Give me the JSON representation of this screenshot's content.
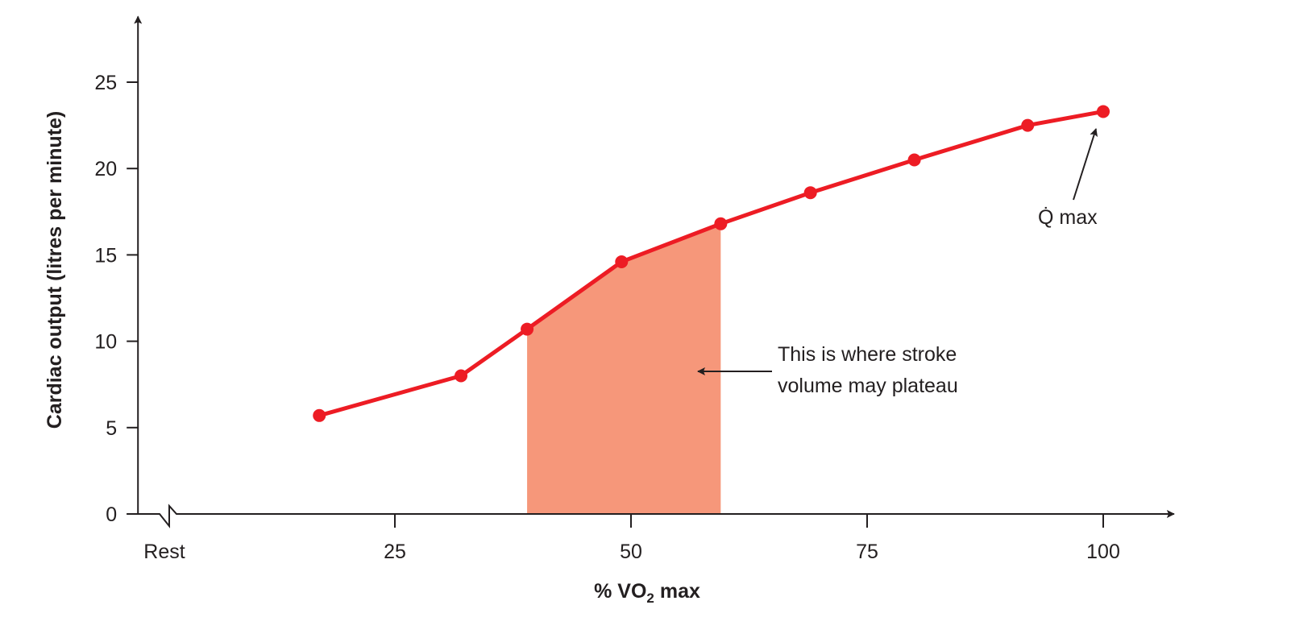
{
  "chart_data": {
    "type": "line",
    "title": "",
    "xlabel_prefix": "% VO",
    "xlabel_sub": "2",
    "xlabel_suffix": " max",
    "ylabel": "Cardiac output (litres per minute)",
    "xlim": [
      -2.2,
      107.5
    ],
    "ylim": [
      0,
      28.8
    ],
    "x_ticks": [
      {
        "value": 0,
        "label": "Rest"
      },
      {
        "value": 25,
        "label": "25"
      },
      {
        "value": 50,
        "label": "50"
      },
      {
        "value": 75,
        "label": "75"
      },
      {
        "value": 100,
        "label": "100"
      }
    ],
    "y_ticks": [
      0,
      5,
      10,
      15,
      20,
      25
    ],
    "axis_break": "x-axis near origin",
    "grid": false,
    "series": [
      {
        "color": "#ed1c24",
        "points": [
          {
            "x": 17,
            "y": 5.7
          },
          {
            "x": 32,
            "y": 8.0
          },
          {
            "x": 39,
            "y": 10.7
          },
          {
            "x": 49,
            "y": 14.6
          },
          {
            "x": 59.5,
            "y": 16.8
          },
          {
            "x": 69,
            "y": 18.6
          },
          {
            "x": 80,
            "y": 20.5
          },
          {
            "x": 92,
            "y": 22.5
          },
          {
            "x": 100,
            "y": 23.3
          }
        ]
      }
    ],
    "shaded_region": {
      "x_from": 39,
      "x_to": 59.5,
      "color": "#f6977a"
    },
    "annotations": [
      {
        "lines": [
          "This is where stroke",
          "volume may plateau"
        ],
        "points_to": "shaded-region"
      },
      {
        "text": "Q̇ max",
        "points_to": {
          "x": 100,
          "y": 23.3
        }
      }
    ]
  }
}
